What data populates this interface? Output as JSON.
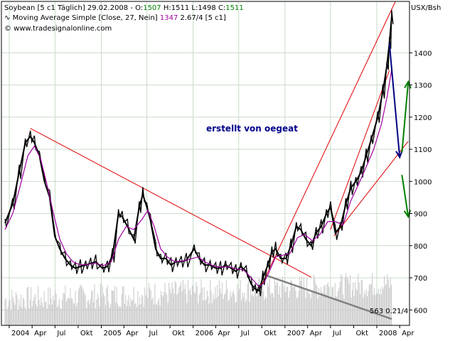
{
  "header": {
    "symbol": "Soybean [5 c1  Täglich] 29.02.2008 - ",
    "ohlc": [
      {
        "label": "O:",
        "value": "1507",
        "color": "#008000"
      },
      {
        "label": " H:",
        "value": "1511",
        "color": "#000000"
      },
      {
        "label": " L:",
        "value": "1498",
        "color": "#000000"
      },
      {
        "label": " C:",
        "value": "1511",
        "color": "#008000"
      }
    ],
    "indicator_prefix": "Moving Average Simple [Close, 27, Nein] ",
    "indicator_value": "1347",
    "indicator_suffix": " 2.67/4 [5 c1]",
    "copyright": "© www.tradesignalonline.com"
  },
  "colors": {
    "price": "#000000",
    "moving_average": "#a000a0",
    "trendline": "#e00000",
    "forecast_down": "#000080",
    "forecast_alt": "#008000",
    "volume": "#c8c8c8",
    "volume_trend": "#808080",
    "grid": "#c8dcc8",
    "annotation": "#00008b"
  },
  "chart_data": {
    "type": "line",
    "title": "Soybean [5 c1  Täglich]",
    "ylabel": "USX/Bsh",
    "ylim": [
      552,
      1560
    ],
    "y_ticks": [
      600,
      700,
      800,
      900,
      1000,
      1100,
      1200,
      1300,
      1400
    ],
    "x_ticks": [
      "2004",
      "Apr",
      "Jul",
      "Okt",
      "2005",
      "Apr",
      "Jul",
      "Okt",
      "2006",
      "Apr",
      "Jul",
      "Okt",
      "2007",
      "Apr",
      "Jul",
      "Okt",
      "2008",
      "Apr"
    ],
    "xlim": [
      "2003-12-01",
      "2008-05-10"
    ],
    "grid": true,
    "annotation": "erstellt von oegeat",
    "volume_label": "563 0.21/4",
    "series": [
      {
        "type": "price",
        "points": [
          [
            "2003-12-15",
            870
          ],
          [
            "2004-01-15",
            930
          ],
          [
            "2004-02-10",
            1030
          ],
          [
            "2004-03-05",
            1120
          ],
          [
            "2004-03-25",
            1140
          ],
          [
            "2004-04-10",
            1120
          ],
          [
            "2004-04-30",
            1080
          ],
          [
            "2004-05-20",
            1000
          ],
          [
            "2004-06-10",
            950
          ],
          [
            "2004-06-30",
            830
          ],
          [
            "2004-07-20",
            790
          ],
          [
            "2004-08-10",
            760
          ],
          [
            "2004-08-31",
            740
          ],
          [
            "2004-09-20",
            730
          ],
          [
            "2004-10-10",
            735
          ],
          [
            "2004-10-31",
            740
          ],
          [
            "2004-11-20",
            745
          ],
          [
            "2004-12-10",
            750
          ],
          [
            "2005-01-05",
            730
          ],
          [
            "2005-01-25",
            735
          ],
          [
            "2005-02-15",
            770
          ],
          [
            "2005-03-10",
            900
          ],
          [
            "2005-03-25",
            890
          ],
          [
            "2005-04-15",
            860
          ],
          [
            "2005-05-10",
            820
          ],
          [
            "2005-06-01",
            920
          ],
          [
            "2005-06-15",
            960
          ],
          [
            "2005-07-01",
            920
          ],
          [
            "2005-07-15",
            880
          ],
          [
            "2005-08-05",
            790
          ],
          [
            "2005-08-25",
            760
          ],
          [
            "2005-09-15",
            760
          ],
          [
            "2005-10-05",
            740
          ],
          [
            "2005-10-25",
            750
          ],
          [
            "2005-11-15",
            750
          ],
          [
            "2005-12-05",
            755
          ],
          [
            "2006-01-05",
            790
          ],
          [
            "2006-01-25",
            760
          ],
          [
            "2006-02-15",
            740
          ],
          [
            "2006-03-10",
            740
          ],
          [
            "2006-04-01",
            730
          ],
          [
            "2006-04-20",
            730
          ],
          [
            "2006-05-10",
            740
          ],
          [
            "2006-06-01",
            730
          ],
          [
            "2006-06-20",
            720
          ],
          [
            "2006-07-10",
            735
          ],
          [
            "2006-07-31",
            720
          ],
          [
            "2006-08-20",
            680
          ],
          [
            "2006-09-05",
            665
          ],
          [
            "2006-09-20",
            660
          ],
          [
            "2006-10-05",
            700
          ],
          [
            "2006-10-25",
            740
          ],
          [
            "2006-11-10",
            780
          ],
          [
            "2006-11-25",
            790
          ],
          [
            "2006-12-15",
            760
          ],
          [
            "2007-01-05",
            760
          ],
          [
            "2007-01-25",
            800
          ],
          [
            "2007-02-15",
            860
          ],
          [
            "2007-03-05",
            850
          ],
          [
            "2007-03-25",
            820
          ],
          [
            "2007-04-15",
            800
          ],
          [
            "2007-05-05",
            840
          ],
          [
            "2007-05-25",
            860
          ],
          [
            "2007-06-15",
            900
          ],
          [
            "2007-07-01",
            920
          ],
          [
            "2007-07-20",
            840
          ],
          [
            "2007-08-10",
            860
          ],
          [
            "2007-08-31",
            930
          ],
          [
            "2007-09-20",
            980
          ],
          [
            "2007-10-10",
            1000
          ],
          [
            "2007-10-31",
            1030
          ],
          [
            "2007-11-20",
            1080
          ],
          [
            "2007-12-10",
            1130
          ],
          [
            "2008-01-05",
            1200
          ],
          [
            "2008-01-25",
            1280
          ],
          [
            "2008-02-10",
            1360
          ],
          [
            "2008-02-20",
            1430
          ],
          [
            "2008-02-29",
            1511
          ]
        ]
      },
      {
        "type": "moving_average",
        "name": "Moving Average Simple [Close, 27, Nein]",
        "points": [
          [
            "2003-12-15",
            850
          ],
          [
            "2004-01-15",
            900
          ],
          [
            "2004-02-15",
            990
          ],
          [
            "2004-03-15",
            1080
          ],
          [
            "2004-04-10",
            1110
          ],
          [
            "2004-05-05",
            1070
          ],
          [
            "2004-05-30",
            990
          ],
          [
            "2004-06-25",
            900
          ],
          [
            "2004-07-20",
            820
          ],
          [
            "2004-08-15",
            775
          ],
          [
            "2004-09-10",
            750
          ],
          [
            "2004-10-10",
            740
          ],
          [
            "2004-11-10",
            742
          ],
          [
            "2004-12-10",
            745
          ],
          [
            "2005-01-10",
            738
          ],
          [
            "2005-02-10",
            750
          ],
          [
            "2005-03-10",
            820
          ],
          [
            "2005-04-10",
            860
          ],
          [
            "2005-05-10",
            850
          ],
          [
            "2005-06-10",
            880
          ],
          [
            "2005-07-05",
            910
          ],
          [
            "2005-07-30",
            860
          ],
          [
            "2005-08-25",
            790
          ],
          [
            "2005-09-20",
            765
          ],
          [
            "2005-10-20",
            750
          ],
          [
            "2005-11-20",
            752
          ],
          [
            "2005-12-20",
            758
          ],
          [
            "2006-01-20",
            765
          ],
          [
            "2006-02-20",
            748
          ],
          [
            "2006-03-20",
            738
          ],
          [
            "2006-04-20",
            733
          ],
          [
            "2006-05-20",
            735
          ],
          [
            "2006-06-20",
            728
          ],
          [
            "2006-07-20",
            725
          ],
          [
            "2006-08-20",
            700
          ],
          [
            "2006-09-20",
            672
          ],
          [
            "2006-10-10",
            685
          ],
          [
            "2006-10-31",
            720
          ],
          [
            "2006-11-25",
            765
          ],
          [
            "2006-12-20",
            770
          ],
          [
            "2007-01-20",
            775
          ],
          [
            "2007-02-20",
            825
          ],
          [
            "2007-03-20",
            835
          ],
          [
            "2007-04-20",
            815
          ],
          [
            "2007-05-20",
            835
          ],
          [
            "2007-06-20",
            875
          ],
          [
            "2007-07-20",
            875
          ],
          [
            "2007-08-20",
            865
          ],
          [
            "2007-09-20",
            940
          ],
          [
            "2007-10-20",
            990
          ],
          [
            "2007-11-20",
            1045
          ],
          [
            "2007-12-20",
            1100
          ],
          [
            "2008-01-20",
            1180
          ],
          [
            "2008-02-10",
            1260
          ],
          [
            "2008-02-29",
            1347
          ]
        ]
      }
    ],
    "trendlines": [
      {
        "name": "downtrend",
        "from": [
          "2004-03-25",
          1165
        ],
        "to": [
          "2007-04-15",
          702
        ],
        "color": "#e00000"
      },
      {
        "name": "uptrend-steep",
        "from": [
          "2006-09-20",
          660
        ],
        "to": [
          "2008-03-15",
          1560
        ],
        "color": "#e00000"
      },
      {
        "name": "uptrend-shallow",
        "from": [
          "2007-07-15",
          830
        ],
        "to": [
          "2008-05-05",
          1125
        ],
        "color": "#e00000"
      },
      {
        "name": "uptrend-short",
        "from": [
          "2007-07-01",
          850
        ],
        "to": [
          "2008-02-20",
          1345
        ],
        "color": "#e00000"
      }
    ],
    "arrows": [
      {
        "name": "forecast-down",
        "from": [
          "2008-02-20",
          1430
        ],
        "to": [
          "2008-04-01",
          1075
        ],
        "color": "#000080"
      },
      {
        "name": "forecast-up",
        "from": [
          "2008-04-10",
          1090
        ],
        "to": [
          "2008-05-05",
          1310
        ],
        "color": "#008000"
      },
      {
        "name": "forecast-down-2",
        "from": [
          "2008-04-10",
          1020
        ],
        "to": [
          "2008-05-05",
          890
        ],
        "color": "#008000"
      }
    ],
    "volume": {
      "ylim": [
        0,
        100
      ],
      "bars_per_month": 4,
      "start": "2003-12-15",
      "end": "2008-02-29",
      "trendline": {
        "from": [
          "2006-10-05",
          80
        ],
        "to": [
          "2008-02-29",
          10
        ]
      }
    }
  }
}
